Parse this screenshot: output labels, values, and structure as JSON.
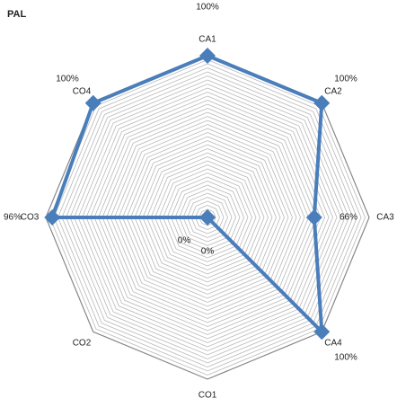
{
  "chart_data": {
    "type": "radar",
    "title": "PAL",
    "categories": [
      "CA1",
      "CA2",
      "CA3",
      "CA4",
      "CO1",
      "CO2",
      "CO3",
      "CO4"
    ],
    "series": [
      {
        "name": "PAL",
        "color": "#4a7ebb",
        "values": [
          100,
          100,
          66,
          100,
          0,
          0,
          96,
          100
        ],
        "value_labels": [
          "100%",
          "100%",
          "66%",
          "100%",
          "0%",
          "0%",
          "96%",
          "100%"
        ]
      }
    ],
    "ylim": [
      0,
      100
    ],
    "yticks": [
      0,
      2.5,
      5,
      7.5,
      10,
      12.5,
      15,
      17.5,
      20,
      22.5,
      25,
      27.5,
      30,
      32.5,
      35,
      37.5,
      40,
      42.5,
      45,
      47.5,
      50,
      52.5,
      55,
      57.5,
      60,
      62.5,
      65,
      67.5,
      70,
      72.5,
      75,
      77.5,
      80,
      82.5,
      85,
      87.5,
      90,
      92.5,
      95,
      97.5,
      100
    ],
    "grid": true
  }
}
